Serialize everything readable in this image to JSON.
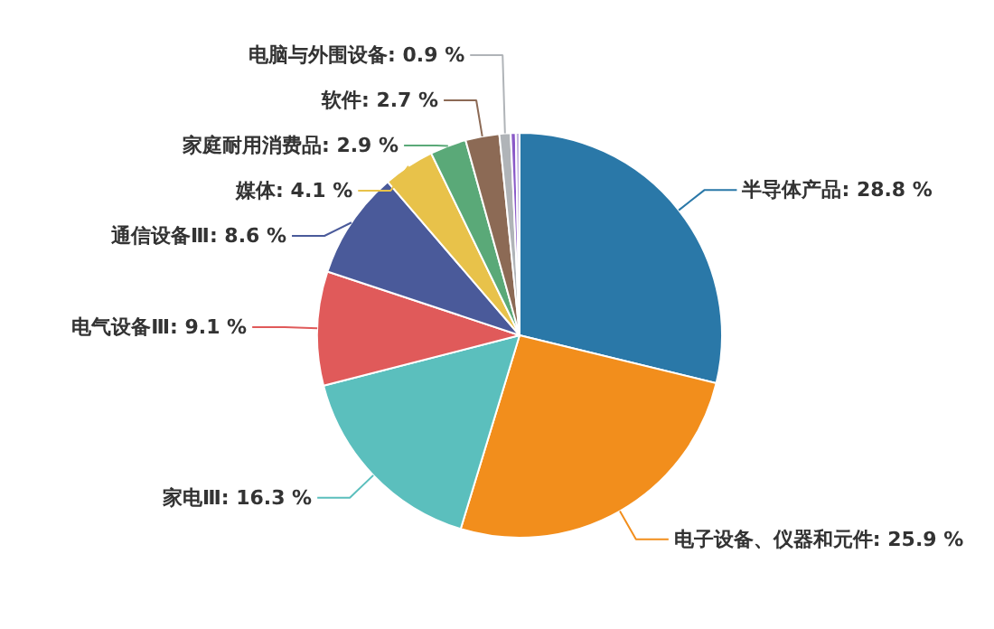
{
  "chart_data": {
    "type": "pie",
    "categories": [
      "半导体产品",
      "电子设备、仪器和元件",
      "家电Ⅲ",
      "电气设备Ⅲ",
      "通信设备Ⅲ",
      "媒体",
      "家庭耐用消费品",
      "软件",
      "电脑与外围设备",
      null,
      null
    ],
    "values": [
      28.8,
      25.9,
      16.3,
      9.1,
      8.6,
      4.1,
      2.9,
      2.7,
      0.9,
      0.4,
      0.3
    ],
    "value_labels": [
      "28.8 %",
      "25.9 %",
      "16.3 %",
      "9.1 %",
      "8.6 %",
      "4.1 %",
      "2.9 %",
      "2.7 %",
      "0.9 %",
      null,
      null
    ],
    "colors": [
      "#2a78a8",
      "#f28e1c",
      "#5bbfbd",
      "#e05a5a",
      "#4a5a9a",
      "#e8c24a",
      "#5aa978",
      "#8c6a55",
      "#b0b4b8",
      "#8a5ac8",
      "#c0b0e0"
    ]
  }
}
